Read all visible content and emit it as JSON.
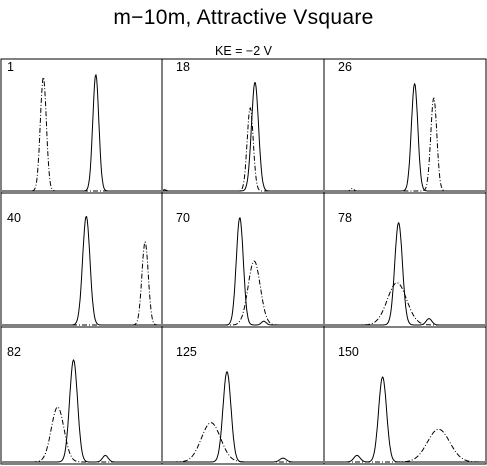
{
  "title": "m−10m,  Attractive  Vsquare",
  "subtitle": "KE = −2  V",
  "chart_data": {
    "type": "line",
    "title": "m−10m,  Attractive  Vsquare",
    "subtitle": "KE = −2  V",
    "layout": "3x3 grid of panels",
    "xlim": [
      0,
      1
    ],
    "ylim": [
      0,
      1
    ],
    "axis_ticks": "none",
    "grid": false,
    "series_styles": {
      "solid": "solid line",
      "dashdot": "dash-dot line"
    },
    "panels": [
      {
        "label": "1",
        "solid": [
          {
            "c": 0.59,
            "a": 0.91,
            "w": 0.019
          }
        ],
        "dashdot": [
          {
            "c": 0.26,
            "a": 0.89,
            "w": 0.019
          }
        ]
      },
      {
        "label": "18",
        "solid": [
          {
            "c": 0.575,
            "a": 0.85,
            "w": 0.022
          }
        ],
        "dashdot": [
          {
            "c": 0.545,
            "a": 0.65,
            "w": 0.019
          },
          {
            "c": 0.01,
            "a": 0.01,
            "w": 0.01
          }
        ]
      },
      {
        "label": "26",
        "solid": [
          {
            "c": 0.56,
            "a": 0.84,
            "w": 0.02
          }
        ],
        "dashdot": [
          {
            "c": 0.68,
            "a": 0.73,
            "w": 0.019
          },
          {
            "c": 0.17,
            "a": 0.02,
            "w": 0.01
          }
        ]
      },
      {
        "label": "40",
        "solid": [
          {
            "c": 0.53,
            "a": 0.85,
            "w": 0.023
          }
        ],
        "dashdot": [
          {
            "c": 0.9,
            "a": 0.65,
            "w": 0.02
          }
        ]
      },
      {
        "label": "70",
        "solid": [
          {
            "c": 0.48,
            "a": 0.84,
            "w": 0.022
          },
          {
            "c": 0.63,
            "a": 0.03,
            "w": 0.015
          }
        ],
        "dashdot": [
          {
            "c": 0.57,
            "a": 0.5,
            "w": 0.038
          }
        ]
      },
      {
        "label": "78",
        "solid": [
          {
            "c": 0.46,
            "a": 0.8,
            "w": 0.024
          },
          {
            "c": 0.65,
            "a": 0.05,
            "w": 0.018
          }
        ],
        "dashdot": [
          {
            "c": 0.45,
            "a": 0.33,
            "w": 0.06
          }
        ]
      },
      {
        "label": "82",
        "solid": [
          {
            "c": 0.45,
            "a": 0.78,
            "w": 0.025
          },
          {
            "c": 0.65,
            "a": 0.05,
            "w": 0.018
          }
        ],
        "dashdot": [
          {
            "c": 0.35,
            "a": 0.42,
            "w": 0.04
          }
        ]
      },
      {
        "label": "125",
        "solid": [
          {
            "c": 0.4,
            "a": 0.69,
            "w": 0.025
          },
          {
            "c": 0.75,
            "a": 0.03,
            "w": 0.02
          }
        ],
        "dashdot": [
          {
            "c": 0.3,
            "a": 0.3,
            "w": 0.06
          }
        ]
      },
      {
        "label": "150",
        "solid": [
          {
            "c": 0.36,
            "a": 0.65,
            "w": 0.025
          },
          {
            "c": 0.2,
            "a": 0.05,
            "w": 0.02
          }
        ],
        "dashdot": [
          {
            "c": 0.71,
            "a": 0.25,
            "w": 0.07
          }
        ]
      }
    ]
  }
}
